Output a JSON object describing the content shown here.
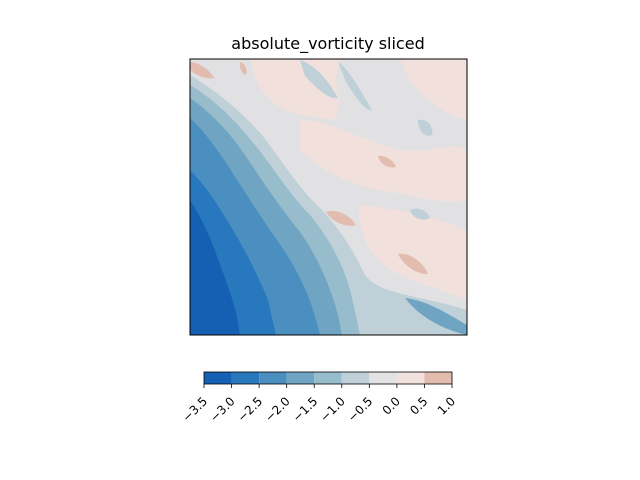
{
  "chart_data": {
    "type": "heatmap",
    "title": "absolute_vorticity sliced",
    "xlabel": "",
    "ylabel": "",
    "axes_ticks_visible": false,
    "colormap": "diverging blue-white-red",
    "colorbar": {
      "orientation": "horizontal",
      "placement": "bottom",
      "levels": [
        -3.5,
        -3.0,
        -2.5,
        -2.0,
        -1.5,
        -1.0,
        -0.5,
        0.0,
        0.5,
        1.0
      ],
      "tick_labels": [
        "−3.5",
        "−3.0",
        "−2.5",
        "−2.0",
        "−1.5",
        "−1.0",
        "−0.5",
        "0.0",
        "0.5",
        "1.0"
      ],
      "bin_colors": [
        "#1660b4",
        "#2878be",
        "#4a8fc0",
        "#6fa5c3",
        "#97bccb",
        "#bfd0d8",
        "#e2e2e4",
        "#f1e0dc",
        "#e3bcb0"
      ]
    },
    "value_range": [
      -3.5,
      1.0
    ],
    "pattern": "Strong negative vorticity (deep blue) in lower-left, positive values (light pink) in upper-right, separated by a diagonal band running from upper-left to lower-right."
  }
}
